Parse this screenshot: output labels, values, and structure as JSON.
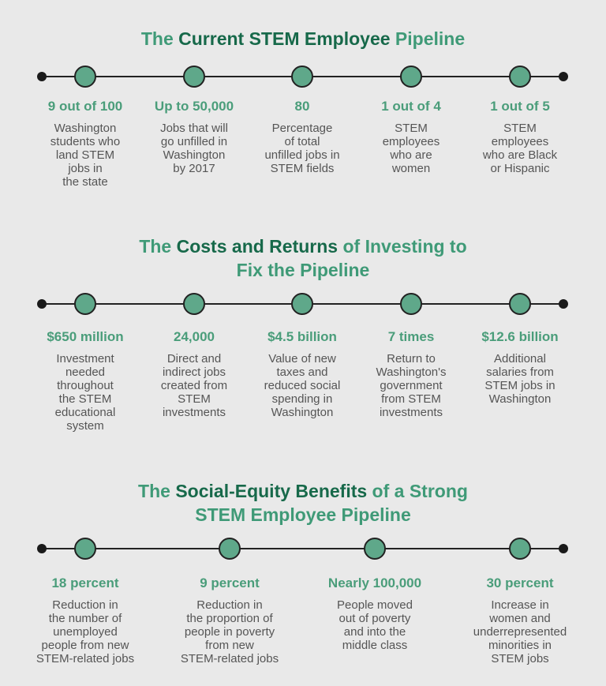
{
  "colors": {
    "accent": "#3f9a77",
    "accent_dark": "#17694a",
    "node": "#5fa88a",
    "background": "#e9e9e9"
  },
  "sections": [
    {
      "title_pre": "The ",
      "title_bold": "Current STEM Employee",
      "title_post": " Pipeline",
      "title_line2": "",
      "items": [
        {
          "value": "9 out of 100",
          "desc": "Washington\nstudents who\nland STEM\njobs in\nthe state"
        },
        {
          "value": "Up to 50,000",
          "desc": "Jobs that will\ngo unfilled in\nWashington\nby 2017"
        },
        {
          "value": "80",
          "desc": "Percentage\nof total\nunfilled jobs in\nSTEM fields"
        },
        {
          "value": "1 out of 4",
          "desc": "STEM\nemployees\nwho are\nwomen"
        },
        {
          "value": "1 out of 5",
          "desc": "STEM\nemployees\nwho are Black\nor Hispanic"
        }
      ]
    },
    {
      "title_pre": "The ",
      "title_bold": "Costs and Returns",
      "title_post": " of Investing to",
      "title_line2": "Fix the Pipeline",
      "items": [
        {
          "value": "$650 million",
          "desc": "Investment\nneeded\nthroughout\nthe STEM\neducational\nsystem"
        },
        {
          "value": "24,000",
          "desc": "Direct and\nindirect jobs\ncreated from\nSTEM\ninvestments"
        },
        {
          "value": "$4.5 billion",
          "desc": "Value of new\ntaxes and\nreduced social\nspending in\nWashington"
        },
        {
          "value": "7 times",
          "desc": "Return to\nWashington's\ngovernment\nfrom STEM\ninvestments"
        },
        {
          "value": "$12.6 billion",
          "desc": "Additional\nsalaries from\nSTEM jobs in\nWashington"
        }
      ]
    },
    {
      "title_pre": "The ",
      "title_bold": "Social-Equity Benefits",
      "title_post": " of a Strong",
      "title_line2": "STEM Employee Pipeline",
      "items": [
        {
          "value": "18 percent",
          "desc": "Reduction in\nthe number of\nunemployed\npeople from new\nSTEM-related jobs"
        },
        {
          "value": "9 percent",
          "desc": "Reduction in\nthe proportion of\npeople in poverty\nfrom new\nSTEM-related jobs"
        },
        {
          "value": "Nearly 100,000",
          "desc": "People moved\nout of poverty\nand into the\nmiddle class"
        },
        {
          "value": "30 percent",
          "desc": "Increase in\nwomen and\nunderrepresented\nminorities in\nSTEM jobs"
        }
      ]
    }
  ]
}
